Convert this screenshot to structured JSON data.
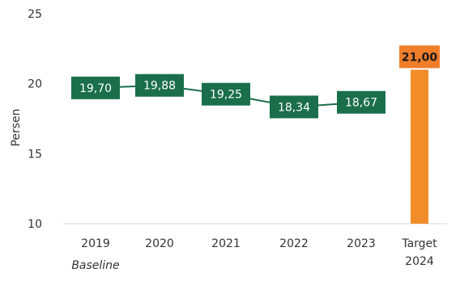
{
  "chart_data": {
    "type": "line",
    "ylabel": "Persen",
    "ylim": [
      10,
      25
    ],
    "yticks": [
      "10",
      "15",
      "20",
      "25"
    ],
    "categories": [
      "2019",
      "2020",
      "2021",
      "2022",
      "2023"
    ],
    "category_sublabels": {
      "2019": "Baseline"
    },
    "series": [
      {
        "values": [
          19.7,
          19.88,
          19.25,
          18.34,
          18.67
        ],
        "labels": [
          "19,70",
          "19,88",
          "19,25",
          "18,34",
          "18,67"
        ],
        "color": "#1b6e4c"
      }
    ],
    "target": {
      "type": "bar",
      "category_lines": [
        "Target",
        "2024"
      ],
      "value": 21.0,
      "label": "21,00",
      "bar_color": "#f28c28",
      "label_bg": "#f07d2a"
    },
    "grid": false
  }
}
